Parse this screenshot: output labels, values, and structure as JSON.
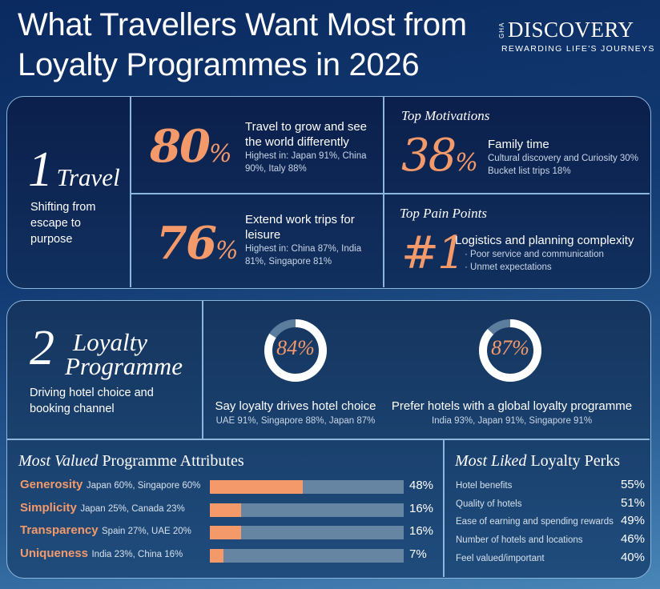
{
  "header": {
    "title_line1": "What Travellers Want Most from",
    "title_line2": "Loyalty Programmes in 2026"
  },
  "logo": {
    "prefix": "GHA",
    "name": "DISCOVERY",
    "tagline": "REWARDING LIFE'S JOURNEYS"
  },
  "colors": {
    "accent": "#f4996a",
    "panel": "#0b1f4c",
    "border": "#8db6dc",
    "track": "#6585a3"
  },
  "travel": {
    "number": "1",
    "word": "Travel",
    "subtitle": "Shifting from escape to purpose",
    "stat1": {
      "value": "80",
      "pct": "%",
      "headline": "Travel to grow and see the world differently",
      "detail": "Highest in: Japan 91%, China 90%, Italy 88%"
    },
    "stat2": {
      "value": "76",
      "pct": "%",
      "headline": "Extend work trips for leisure",
      "detail": "Highest in: China 87%, India 81%, Singapore 81%"
    },
    "motivations": {
      "title": "Top Motivations",
      "value": "38",
      "pct": "%",
      "headline": "Family time",
      "line1": "Cultural discovery and Curiosity 30%",
      "line2": "Bucket list trips 18%"
    },
    "pain": {
      "title": "Top Pain Points",
      "rank": "#1",
      "headline": "Logistics and planning complexity",
      "bullets": [
        "Poor service and communication",
        "Unmet expectations"
      ]
    }
  },
  "loyalty": {
    "number": "2",
    "word1": "Loyalty",
    "word2": "Programme",
    "subtitle": "Driving hotel choice and booking channel"
  },
  "chart_data": [
    {
      "type": "pie",
      "variant": "donut",
      "label": "84%",
      "values": [
        84,
        16
      ],
      "caption": "Say loyalty drives hotel choice",
      "detail": "UAE 91%, Singapore 88%, Japan 87%"
    },
    {
      "type": "pie",
      "variant": "donut",
      "label": "87%",
      "values": [
        87,
        13
      ],
      "caption": "Prefer hotels with a global loyalty programme",
      "detail": "India 93%, Japan 91%, Singapore 91%"
    },
    {
      "type": "bar",
      "orientation": "horizontal",
      "title_italic": "Most Valued",
      "title_rest": "Programme Attributes",
      "xlim": [
        0,
        100
      ],
      "categories": [
        "Generosity",
        "Simplicity",
        "Transparency",
        "Uniqueness"
      ],
      "details": [
        "Japan 60%, Singapore 60%",
        "Japan 25%, Canada 23%",
        "Spain 27%, UAE 20%",
        "India 23%, China 16%"
      ],
      "values": [
        48,
        16,
        16,
        7
      ],
      "labels": [
        "48%",
        "16%",
        "16%",
        "7%"
      ]
    },
    {
      "type": "table",
      "title_italic": "Most Liked",
      "title_rest": "Loyalty Perks",
      "rows": [
        {
          "label": "Hotel benefits",
          "value": "55%"
        },
        {
          "label": "Quality of hotels",
          "value": "51%"
        },
        {
          "label": "Ease of earning and spending rewards",
          "value": "49%"
        },
        {
          "label": "Number of hotels and locations",
          "value": "46%"
        },
        {
          "label": "Feel valued/important",
          "value": "40%"
        }
      ]
    }
  ]
}
